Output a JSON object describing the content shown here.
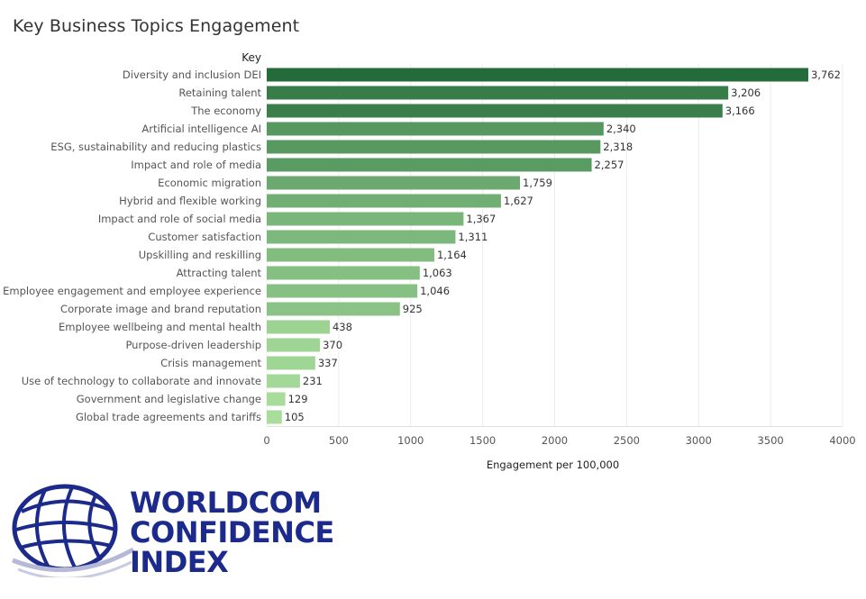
{
  "title": "Key Business Topics Engagement",
  "logo": {
    "line1": "WORLDCOM",
    "line2": "CONFIDENCE",
    "line3": "INDEX",
    "color": "#1c2a8c"
  },
  "chart_data": {
    "type": "bar",
    "orientation": "horizontal",
    "title": "Key Business Topics Engagement",
    "category_header": "Key",
    "xlabel": "Engagement per 100,000",
    "ylabel": "",
    "xlim": [
      0,
      4000
    ],
    "xticks": [
      0,
      500,
      1000,
      1500,
      2000,
      2500,
      3000,
      3500,
      4000
    ],
    "grid": true,
    "categories": [
      "Diversity and inclusion DEI",
      "Retaining talent",
      "The economy",
      "Artificial intelligence AI",
      "ESG, sustainability and reducing plastics",
      "Impact and role of media",
      "Economic migration",
      "Hybrid and flexible working",
      "Impact and role of social media",
      "Customer satisfaction",
      "Upskilling and reskilling",
      "Attracting talent",
      "Employee engagement and employee experience",
      "Corporate image and brand reputation",
      "Employee wellbeing and mental health",
      "Purpose-driven leadership",
      "Crisis management",
      "Use of technology to collaborate and innovate",
      "Government and legislative change",
      "Global trade agreements and tariffs"
    ],
    "values": [
      3762,
      3206,
      3166,
      2340,
      2318,
      2257,
      1759,
      1627,
      1367,
      1311,
      1164,
      1063,
      1046,
      925,
      438,
      370,
      337,
      231,
      129,
      105
    ],
    "value_labels": [
      "3,762",
      "3,206",
      "3,166",
      "2,340",
      "2,318",
      "2,257",
      "1,759",
      "1,627",
      "1,367",
      "1,311",
      "1,164",
      "1,063",
      "1,046",
      "925",
      "438",
      "370",
      "337",
      "231",
      "129",
      "105"
    ],
    "color_scale": {
      "low": "#a8dd9b",
      "high": "#246b3b"
    }
  }
}
